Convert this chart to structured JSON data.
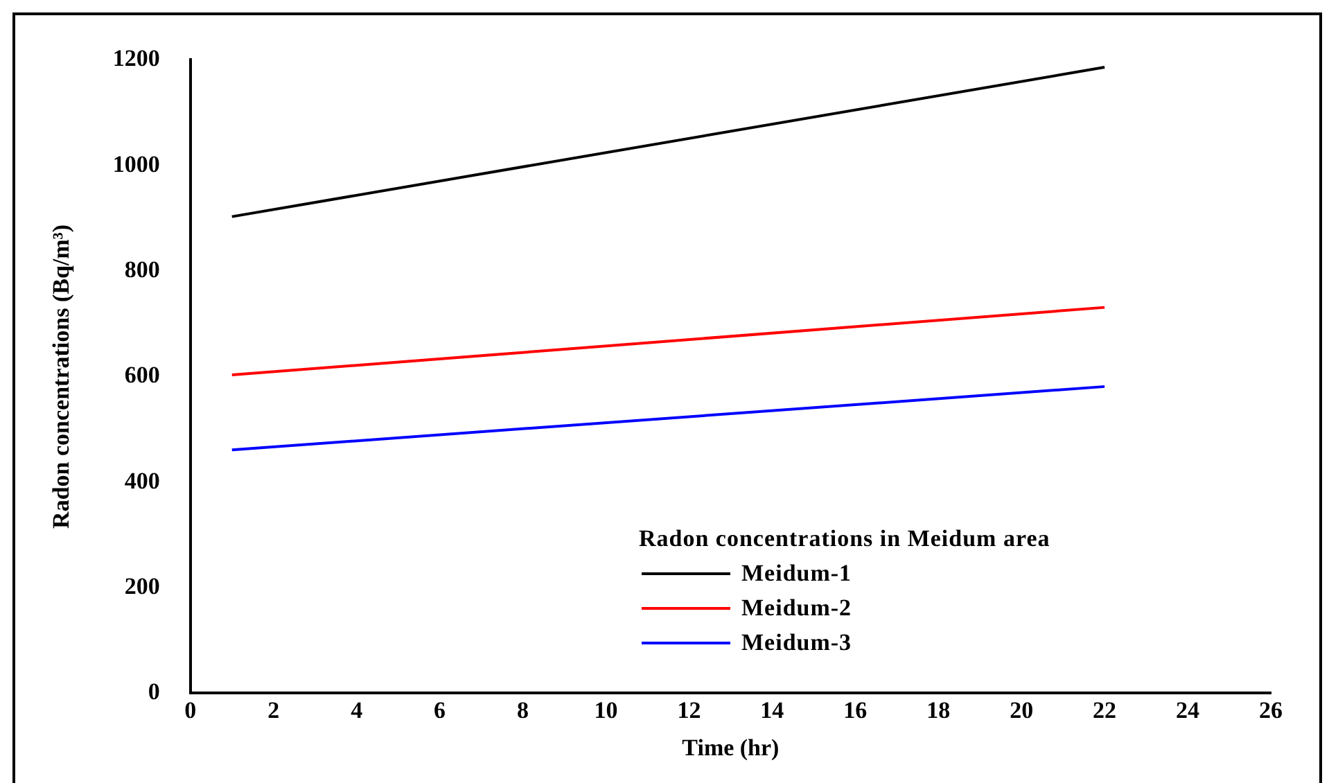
{
  "chart_data": {
    "type": "line",
    "xlabel": "Time (hr)",
    "ylabel": "Radon concentrations (Bq/m³)",
    "legend_title": "Radon concentrations in Meidum area",
    "x": [
      1,
      22
    ],
    "series": [
      {
        "name": "Meidum-1",
        "color": "#000000",
        "values": [
          903,
          1186
        ]
      },
      {
        "name": "Meidum-2",
        "color": "#ff0000",
        "values": [
          603,
          731
        ]
      },
      {
        "name": "Meidum-3",
        "color": "#0000ff",
        "values": [
          461,
          581
        ]
      }
    ],
    "xlim": [
      0,
      26
    ],
    "xticks": [
      0,
      2,
      4,
      6,
      8,
      10,
      12,
      14,
      16,
      18,
      20,
      22,
      24,
      26
    ],
    "ylim": [
      0,
      1200
    ],
    "yticks": [
      0,
      200,
      400,
      600,
      800,
      1000,
      1200
    ],
    "grid": false,
    "legend": "bottom right",
    "marker": "none",
    "line_style": "solid"
  }
}
